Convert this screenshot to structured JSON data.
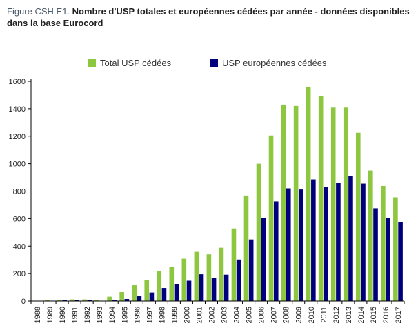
{
  "figure": {
    "label": "Figure CSH E1.",
    "title": "Nombre d'USP totales et européennes cédées par année - données disponibles dans la base Eurocord"
  },
  "chart_data": {
    "type": "bar",
    "title": "Nombre d'USP totales et européennes cédées par année - données disponibles dans la base Eurocord",
    "xlabel": "",
    "ylabel": "",
    "ylim": [
      0,
      1600
    ],
    "yticks": [
      0,
      200,
      400,
      600,
      800,
      1000,
      1200,
      1400,
      1600
    ],
    "grid": false,
    "legend_position": "top",
    "categories": [
      "1988",
      "1989",
      "1990",
      "1991",
      "1992",
      "1993",
      "1994",
      "1995",
      "1996",
      "1997",
      "1998",
      "1999",
      "2000",
      "2001",
      "2002",
      "2003",
      "2004",
      "2005",
      "2006",
      "2007",
      "2008",
      "2009",
      "2010",
      "2011",
      "2012",
      "2013",
      "2014",
      "2015",
      "2016",
      "2017"
    ],
    "series": [
      {
        "name": "Total USP cédées",
        "color": "#8dc63f",
        "values": [
          2,
          5,
          8,
          12,
          12,
          8,
          32,
          65,
          115,
          155,
          220,
          248,
          308,
          358,
          340,
          388,
          528,
          768,
          1000,
          1205,
          1430,
          1420,
          1555,
          1492,
          1408,
          1408,
          1225,
          950,
          838,
          755
        ]
      },
      {
        "name": "USP européennes cédées",
        "color": "#00007f",
        "values": [
          0,
          2,
          5,
          8,
          8,
          2,
          8,
          15,
          35,
          62,
          95,
          125,
          148,
          195,
          168,
          192,
          302,
          448,
          605,
          725,
          820,
          812,
          885,
          830,
          862,
          910,
          855,
          675,
          602,
          572
        ]
      }
    ]
  }
}
